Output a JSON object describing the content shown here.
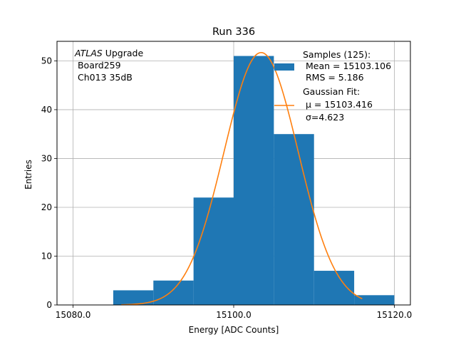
{
  "chart_data": {
    "type": "bar",
    "title": "Run 336",
    "xlabel": "Energy [ADC Counts]",
    "ylabel": "Entries",
    "xlim": [
      15078,
      15122
    ],
    "ylim": [
      0,
      54
    ],
    "xticks": [
      15080,
      15100,
      15120
    ],
    "xtick_labels": [
      "15080.0",
      "15100.0",
      "15120.0"
    ],
    "yticks": [
      0,
      10,
      20,
      30,
      40,
      50
    ],
    "ytick_labels": [
      "0",
      "10",
      "20",
      "30",
      "40",
      "50"
    ],
    "grid": true,
    "histogram": {
      "name": "Samples (125):",
      "color": "#1f77b4",
      "bins": [
        {
          "x0": 15085,
          "x1": 15090,
          "count": 3
        },
        {
          "x0": 15090,
          "x1": 15095,
          "count": 5
        },
        {
          "x0": 15095,
          "x1": 15100,
          "count": 22
        },
        {
          "x0": 15100,
          "x1": 15105,
          "count": 51
        },
        {
          "x0": 15105,
          "x1": 15110,
          "count": 35
        },
        {
          "x0": 15110,
          "x1": 15115,
          "count": 7
        },
        {
          "x0": 15115,
          "x1": 15120,
          "count": 2
        }
      ]
    },
    "fit": {
      "name": "Gaussian Fit:",
      "color": "#ff7f0e",
      "mu": 15103.416,
      "sigma": 4.623,
      "amplitude": 51.7,
      "x_range": [
        15086,
        15116
      ]
    },
    "legend": {
      "placement": "top-right",
      "entries": [
        {
          "lines": [
            "Samples (125):",
            " Mean = 15103.106",
            " RMS = 5.186"
          ]
        },
        {
          "lines": [
            "Gaussian Fit:",
            " μ = 15103.416",
            " σ=4.623"
          ]
        }
      ]
    },
    "annotation": {
      "placement": "top-left",
      "atlas": "ATLAS",
      "upgrade": " Upgrade",
      "lines": [
        " Board259",
        " Ch013 35dB"
      ]
    }
  }
}
